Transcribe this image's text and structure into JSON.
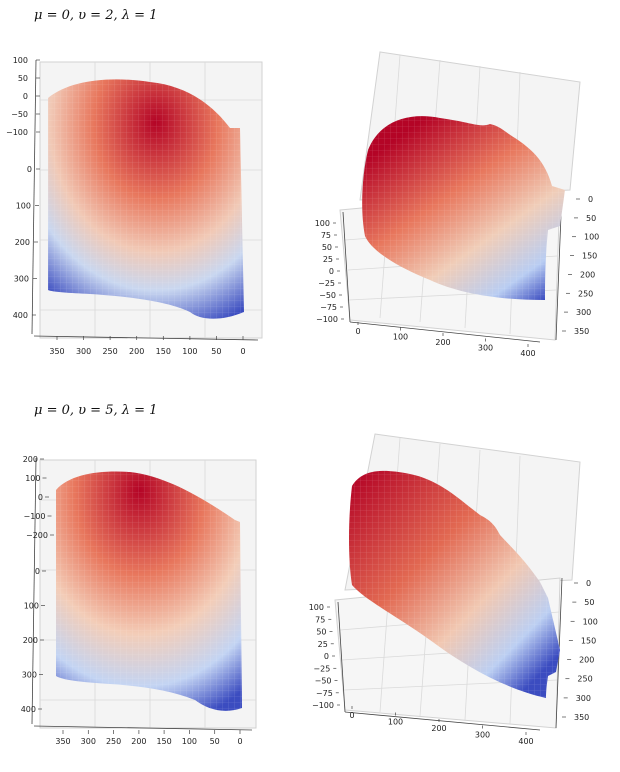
{
  "headings": [
    {
      "label": "μ = 0, υ = 2, λ = 1"
    },
    {
      "label": "μ = 0, υ = 5, λ = 1"
    }
  ],
  "chart_data": [
    {
      "type": "surface3d",
      "view": "front",
      "surface": "face",
      "z_ticks": [
        "100",
        "50",
        "0",
        "−50",
        "−100"
      ],
      "y_ticks": [
        "0",
        "100",
        "200",
        "300",
        "400"
      ],
      "x_ticks": [
        "350",
        "300",
        "250",
        "200",
        "150",
        "100",
        "50",
        "0"
      ],
      "colormap": [
        "#3b4cc0",
        "#dddddd",
        "#b40426"
      ]
    },
    {
      "type": "surface3d",
      "view": "oblique",
      "surface": "face",
      "z_ticks": [
        "100",
        "75",
        "50",
        "25",
        "0",
        "−25",
        "−50",
        "−75",
        "−100"
      ],
      "y_ticks": [
        "0",
        "50",
        "100",
        "150",
        "200",
        "250",
        "300",
        "350"
      ],
      "x_ticks": [
        "0",
        "100",
        "200",
        "300",
        "400"
      ],
      "colormap": [
        "#3b4cc0",
        "#dddddd",
        "#b40426"
      ]
    },
    {
      "type": "surface3d",
      "view": "front",
      "surface": "face",
      "z_ticks": [
        "200",
        "100",
        "0",
        "−100",
        "−200"
      ],
      "y_ticks": [
        "0",
        "100",
        "200",
        "300",
        "400"
      ],
      "x_ticks": [
        "350",
        "300",
        "250",
        "200",
        "150",
        "100",
        "50",
        "0"
      ],
      "colormap": [
        "#3b4cc0",
        "#dddddd",
        "#b40426"
      ]
    },
    {
      "type": "surface3d",
      "view": "oblique",
      "surface": "face",
      "z_ticks": [
        "100",
        "75",
        "50",
        "25",
        "0",
        "−25",
        "−50",
        "−75",
        "−100"
      ],
      "y_ticks": [
        "0",
        "50",
        "100",
        "150",
        "200",
        "250",
        "300",
        "350"
      ],
      "x_ticks": [
        "0",
        "100",
        "200",
        "300",
        "400"
      ],
      "colormap": [
        "#3b4cc0",
        "#dddddd",
        "#b40426"
      ]
    }
  ]
}
